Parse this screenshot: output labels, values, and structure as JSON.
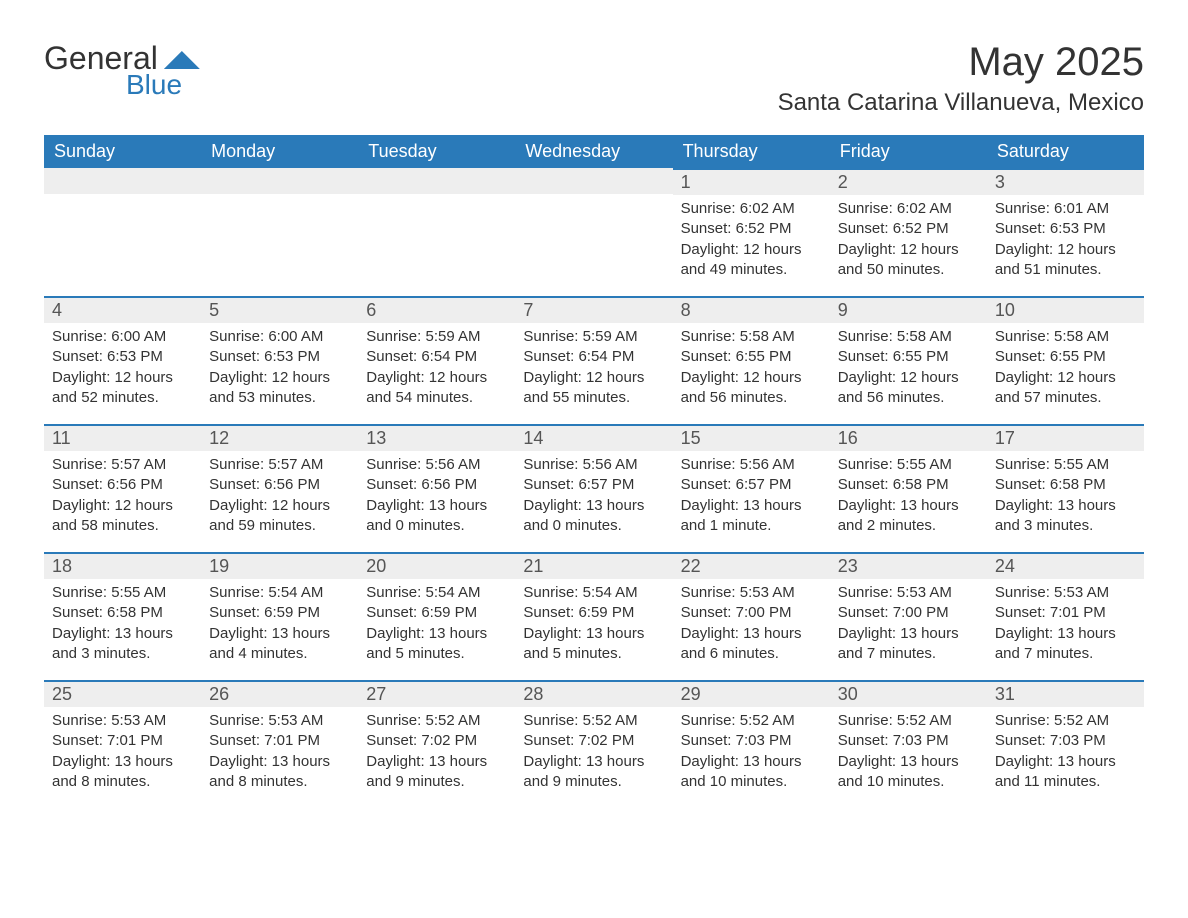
{
  "brand": {
    "word1": "General",
    "word2": "Blue"
  },
  "header": {
    "month_title": "May 2025",
    "location": "Santa Catarina Villanueva, Mexico"
  },
  "palette": {
    "brand_blue": "#2a7ab9",
    "header_bg": "#2a7ab9",
    "header_text": "#ffffff",
    "daynum_bg": "#eeeeee",
    "body_bg": "#ffffff",
    "text": "#333333"
  },
  "calendar": {
    "weekdays": [
      "Sunday",
      "Monday",
      "Tuesday",
      "Wednesday",
      "Thursday",
      "Friday",
      "Saturday"
    ],
    "start_weekday_index": 4,
    "days": [
      {
        "n": 1,
        "sunrise": "6:02 AM",
        "sunset": "6:52 PM",
        "daylight": "12 hours and 49 minutes."
      },
      {
        "n": 2,
        "sunrise": "6:02 AM",
        "sunset": "6:52 PM",
        "daylight": "12 hours and 50 minutes."
      },
      {
        "n": 3,
        "sunrise": "6:01 AM",
        "sunset": "6:53 PM",
        "daylight": "12 hours and 51 minutes."
      },
      {
        "n": 4,
        "sunrise": "6:00 AM",
        "sunset": "6:53 PM",
        "daylight": "12 hours and 52 minutes."
      },
      {
        "n": 5,
        "sunrise": "6:00 AM",
        "sunset": "6:53 PM",
        "daylight": "12 hours and 53 minutes."
      },
      {
        "n": 6,
        "sunrise": "5:59 AM",
        "sunset": "6:54 PM",
        "daylight": "12 hours and 54 minutes."
      },
      {
        "n": 7,
        "sunrise": "5:59 AM",
        "sunset": "6:54 PM",
        "daylight": "12 hours and 55 minutes."
      },
      {
        "n": 8,
        "sunrise": "5:58 AM",
        "sunset": "6:55 PM",
        "daylight": "12 hours and 56 minutes."
      },
      {
        "n": 9,
        "sunrise": "5:58 AM",
        "sunset": "6:55 PM",
        "daylight": "12 hours and 56 minutes."
      },
      {
        "n": 10,
        "sunrise": "5:58 AM",
        "sunset": "6:55 PM",
        "daylight": "12 hours and 57 minutes."
      },
      {
        "n": 11,
        "sunrise": "5:57 AM",
        "sunset": "6:56 PM",
        "daylight": "12 hours and 58 minutes."
      },
      {
        "n": 12,
        "sunrise": "5:57 AM",
        "sunset": "6:56 PM",
        "daylight": "12 hours and 59 minutes."
      },
      {
        "n": 13,
        "sunrise": "5:56 AM",
        "sunset": "6:56 PM",
        "daylight": "13 hours and 0 minutes."
      },
      {
        "n": 14,
        "sunrise": "5:56 AM",
        "sunset": "6:57 PM",
        "daylight": "13 hours and 0 minutes."
      },
      {
        "n": 15,
        "sunrise": "5:56 AM",
        "sunset": "6:57 PM",
        "daylight": "13 hours and 1 minute."
      },
      {
        "n": 16,
        "sunrise": "5:55 AM",
        "sunset": "6:58 PM",
        "daylight": "13 hours and 2 minutes."
      },
      {
        "n": 17,
        "sunrise": "5:55 AM",
        "sunset": "6:58 PM",
        "daylight": "13 hours and 3 minutes."
      },
      {
        "n": 18,
        "sunrise": "5:55 AM",
        "sunset": "6:58 PM",
        "daylight": "13 hours and 3 minutes."
      },
      {
        "n": 19,
        "sunrise": "5:54 AM",
        "sunset": "6:59 PM",
        "daylight": "13 hours and 4 minutes."
      },
      {
        "n": 20,
        "sunrise": "5:54 AM",
        "sunset": "6:59 PM",
        "daylight": "13 hours and 5 minutes."
      },
      {
        "n": 21,
        "sunrise": "5:54 AM",
        "sunset": "6:59 PM",
        "daylight": "13 hours and 5 minutes."
      },
      {
        "n": 22,
        "sunrise": "5:53 AM",
        "sunset": "7:00 PM",
        "daylight": "13 hours and 6 minutes."
      },
      {
        "n": 23,
        "sunrise": "5:53 AM",
        "sunset": "7:00 PM",
        "daylight": "13 hours and 7 minutes."
      },
      {
        "n": 24,
        "sunrise": "5:53 AM",
        "sunset": "7:01 PM",
        "daylight": "13 hours and 7 minutes."
      },
      {
        "n": 25,
        "sunrise": "5:53 AM",
        "sunset": "7:01 PM",
        "daylight": "13 hours and 8 minutes."
      },
      {
        "n": 26,
        "sunrise": "5:53 AM",
        "sunset": "7:01 PM",
        "daylight": "13 hours and 8 minutes."
      },
      {
        "n": 27,
        "sunrise": "5:52 AM",
        "sunset": "7:02 PM",
        "daylight": "13 hours and 9 minutes."
      },
      {
        "n": 28,
        "sunrise": "5:52 AM",
        "sunset": "7:02 PM",
        "daylight": "13 hours and 9 minutes."
      },
      {
        "n": 29,
        "sunrise": "5:52 AM",
        "sunset": "7:03 PM",
        "daylight": "13 hours and 10 minutes."
      },
      {
        "n": 30,
        "sunrise": "5:52 AM",
        "sunset": "7:03 PM",
        "daylight": "13 hours and 10 minutes."
      },
      {
        "n": 31,
        "sunrise": "5:52 AM",
        "sunset": "7:03 PM",
        "daylight": "13 hours and 11 minutes."
      }
    ],
    "labels": {
      "sunrise_prefix": "Sunrise: ",
      "sunset_prefix": "Sunset: ",
      "daylight_prefix": "Daylight: "
    }
  }
}
